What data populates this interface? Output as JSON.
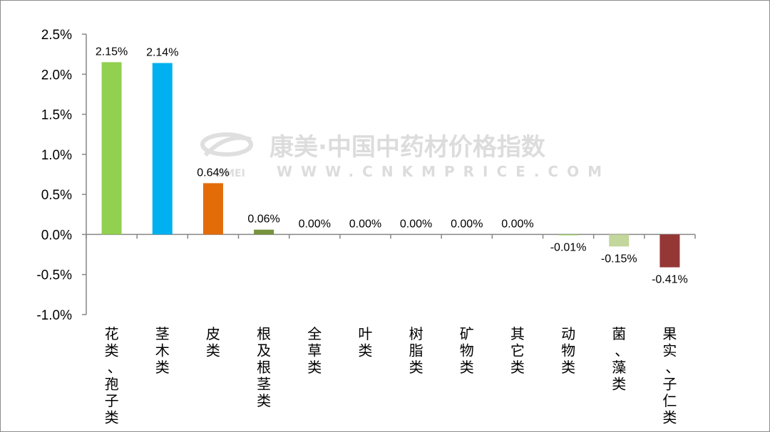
{
  "chart_data": {
    "type": "bar",
    "categories": [
      "花类、孢子类",
      "茎木类",
      "皮类",
      "根及根茎类",
      "全草类",
      "叶类",
      "树脂类",
      "矿物类",
      "其它类",
      "动物类",
      "菌、藻类",
      "果实、子仁类"
    ],
    "values": [
      2.15,
      2.14,
      0.64,
      0.06,
      0.0,
      0.0,
      0.0,
      0.0,
      0.0,
      -0.01,
      -0.15,
      -0.41
    ],
    "labels": [
      "2.15%",
      "2.14%",
      "0.64%",
      "0.06%",
      "0.00%",
      "0.00%",
      "0.00%",
      "0.00%",
      "0.00%",
      "-0.01%",
      "-0.15%",
      "-0.41%"
    ],
    "colors": [
      "#92d050",
      "#00b0f0",
      "#e36c09",
      "#77933c",
      "#92d050",
      "#92d050",
      "#92d050",
      "#92d050",
      "#92d050",
      "#92d050",
      "#c3d69b",
      "#953735"
    ],
    "ylim": [
      -1.0,
      2.5
    ],
    "yticks": [
      2.5,
      2.0,
      1.5,
      1.0,
      0.5,
      0.0,
      -0.5,
      -1.0
    ],
    "ytick_labels": [
      "2.5%",
      "2.0%",
      "1.5%",
      "1.0%",
      "0.5%",
      "0.0%",
      "-0.5%",
      "-1.0%"
    ],
    "grid": false,
    "title": "",
    "xlabel": "",
    "ylabel": ""
  },
  "watermark": {
    "line1": "康美·中国中药材价格指数",
    "line2": "WWW.CNKMPRICE.COM",
    "brand": "SMEI"
  }
}
